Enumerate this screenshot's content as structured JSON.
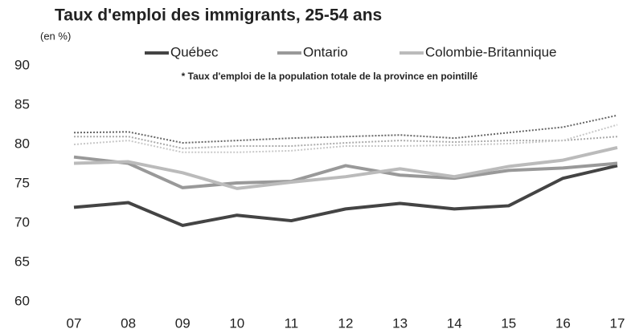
{
  "chart_data": {
    "type": "line",
    "title": "Taux d'emploi des immigrants, 25-54 ans",
    "subtitle": "(en %)",
    "annotation": "* Taux d'emploi de la population totale de la province en pointillé",
    "categories": [
      "07",
      "08",
      "09",
      "10",
      "11",
      "12",
      "13",
      "14",
      "15",
      "16",
      "17"
    ],
    "series": [
      {
        "name": "Québec",
        "color": "#444444",
        "values": [
          72.0,
          72.6,
          69.7,
          71.0,
          70.3,
          71.8,
          72.5,
          71.8,
          72.2,
          75.7,
          77.3
        ]
      },
      {
        "name": "Ontario",
        "color": "#999999",
        "values": [
          78.4,
          77.6,
          74.5,
          75.1,
          75.3,
          77.3,
          76.1,
          75.7,
          76.7,
          77.0,
          77.6
        ]
      },
      {
        "name": "Colombie-Britannique",
        "color": "#bbbbbb",
        "values": [
          77.6,
          77.8,
          76.4,
          74.4,
          75.2,
          75.9,
          76.9,
          75.9,
          77.2,
          78.0,
          79.6
        ]
      },
      {
        "color": "#666666",
        "dashed": true,
        "values": [
          81.5,
          81.6,
          80.2,
          80.5,
          80.8,
          81.0,
          81.2,
          80.8,
          81.5,
          82.2,
          83.7
        ]
      },
      {
        "color": "#aaaaaa",
        "dashed": true,
        "values": [
          81.0,
          81.0,
          79.5,
          79.8,
          79.8,
          80.2,
          80.5,
          80.3,
          80.5,
          80.5,
          81.0
        ]
      },
      {
        "color": "#c8c8c8",
        "dashed": true,
        "values": [
          80.0,
          80.5,
          79.0,
          79.0,
          79.2,
          79.8,
          79.8,
          79.9,
          80.1,
          80.5,
          82.5
        ]
      }
    ],
    "ylim": [
      60,
      90
    ],
    "yticks": [
      60,
      65,
      70,
      75,
      80,
      85,
      90
    ],
    "grid": false
  }
}
